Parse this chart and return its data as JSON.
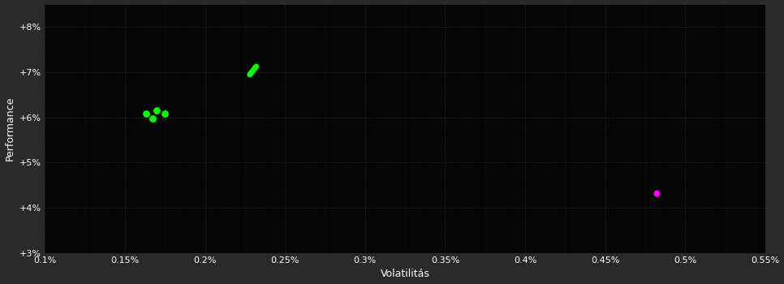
{
  "background_color": "#2a2a2a",
  "plot_bg_color": "#050505",
  "text_color": "#ffffff",
  "xlabel": "Volatilitás",
  "ylabel": "Performance",
  "xlim": [
    0.001,
    0.0055
  ],
  "ylim": [
    0.03,
    0.085
  ],
  "xticks": [
    0.001,
    0.0015,
    0.002,
    0.0025,
    0.003,
    0.0035,
    0.004,
    0.0045,
    0.005,
    0.0055
  ],
  "xtick_labels": [
    "0.1%",
    "0.15%",
    "0.2%",
    "0.25%",
    "0.3%",
    "0.35%",
    "0.4%",
    "0.45%",
    "0.5%",
    "0.55%"
  ],
  "yticks": [
    0.03,
    0.04,
    0.05,
    0.06,
    0.07,
    0.08
  ],
  "ytick_labels": [
    "+3%",
    "+4%",
    "+5%",
    "+6%",
    "+7%",
    "+8%"
  ],
  "green_cluster": [
    [
      0.00163,
      0.0608
    ],
    [
      0.0017,
      0.0615
    ],
    [
      0.00175,
      0.0608
    ],
    [
      0.00167,
      0.0597
    ]
  ],
  "green_line_x1": 0.00228,
  "green_line_y1": 0.0695,
  "green_line_x2": 0.00232,
  "green_line_y2": 0.0713,
  "magenta_point": [
    0.00482,
    0.0432
  ],
  "green_color": "#00ff00",
  "magenta_color": "#ff00ff",
  "cluster_size": 28,
  "magenta_size": 22,
  "grid_color": "#333333",
  "grid_alpha": 1.0
}
